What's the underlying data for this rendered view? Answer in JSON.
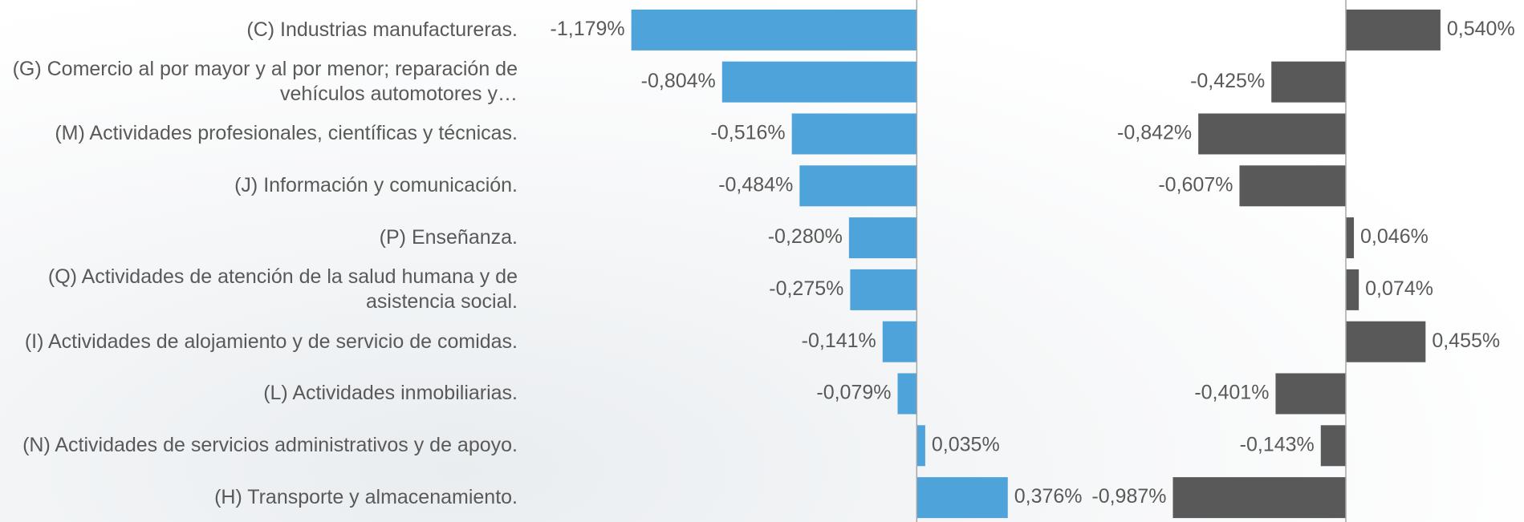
{
  "chart_data": [
    {
      "type": "hbar",
      "color": "#4fa3db",
      "categories": [
        "(C) Industrias manufactureras.",
        "(G) Comercio al por mayor y al por menor; reparación de vehículos automotores y…",
        "(M) Actividades profesionales, científicas y técnicas.",
        "(J) Información y comunicación.",
        "(P) Enseñanza.",
        "(Q) Actividades de atención de la salud humana y de asistencia social.",
        "(I) Actividades de alojamiento y de servicio de comidas.",
        "(L) Actividades inmobiliarias.",
        "(N) Actividades de servicios administrativos y de apoyo.",
        "(H) Transporte y almacenamiento."
      ],
      "values": [
        -1.179,
        -0.804,
        -0.516,
        -0.484,
        -0.28,
        -0.275,
        -0.141,
        -0.079,
        0.035,
        0.376
      ],
      "value_labels": [
        "-1,179%",
        "-0,804%",
        "-0,516%",
        "-0,484%",
        "-0,280%",
        "-0,275%",
        "-0,141%",
        "-0,079%",
        "0,035%",
        "0,376%"
      ],
      "xlim": [
        -1.4,
        0.4
      ]
    },
    {
      "type": "hbar",
      "color": "#595959",
      "values": [
        0.54,
        -0.425,
        -0.842,
        -0.607,
        0.046,
        0.074,
        0.455,
        -0.401,
        -0.143,
        -0.987
      ],
      "value_labels": [
        "0,540%",
        "-0,425%",
        "-0,842%",
        "-0,607%",
        "0,046%",
        "0,074%",
        "0,455%",
        "-0,401%",
        "-0,143%",
        "-0,987%"
      ],
      "xlim": [
        -1.2,
        0.6
      ]
    }
  ]
}
